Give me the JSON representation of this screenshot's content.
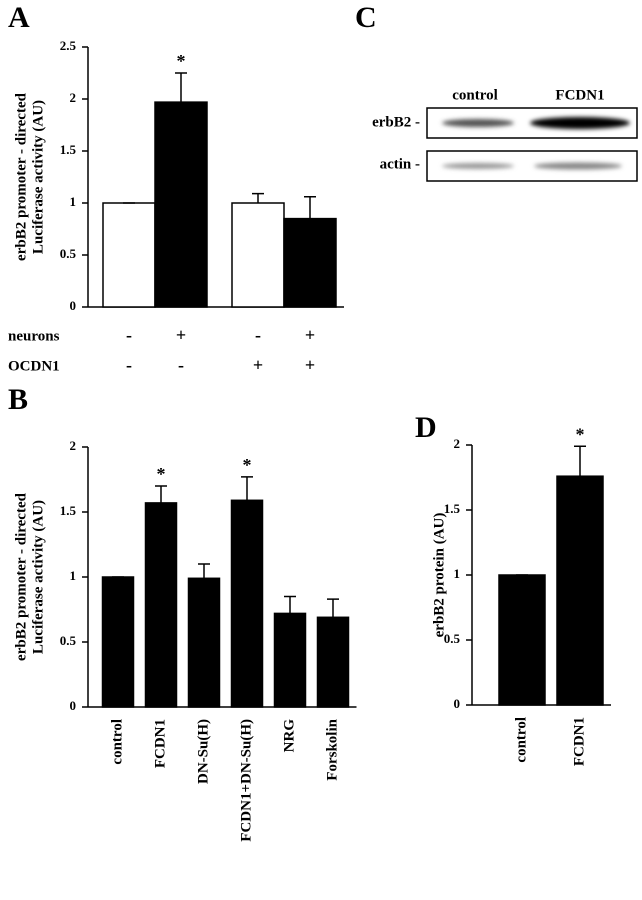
{
  "chart_data": [
    {
      "type": "bar",
      "panel": "A",
      "ylabel": [
        "erbB2 promoter - directed",
        "Luciferase activity (AU)"
      ],
      "categories": [
        null,
        null,
        null,
        null
      ],
      "values": [
        1,
        1.97,
        1,
        0.85
      ],
      "errors": [
        0,
        0.28,
        0.09,
        0.21
      ],
      "colors": [
        "#ffffff",
        "#000000",
        "#ffffff",
        "#000000"
      ],
      "significance": [
        null,
        "*",
        null,
        null
      ],
      "conditions": [
        {
          "name": "neurons",
          "values": [
            "-",
            "+",
            "-",
            "+"
          ]
        },
        {
          "name": "OCDN1",
          "values": [
            "-",
            "-",
            "+",
            "+"
          ]
        }
      ],
      "ylim": [
        0,
        2.5
      ],
      "yticks": [
        0,
        0.5,
        1,
        1.5,
        2,
        2.5
      ]
    },
    {
      "type": "bar",
      "panel": "B",
      "ylabel": [
        "erbB2 promoter - directed",
        "Luciferase activity (AU)"
      ],
      "categories": [
        "control",
        "FCDN1",
        "DN-Su(H)",
        "FCDN1+DN-Su(H)",
        "NRG",
        "Forskolin"
      ],
      "values": [
        1,
        1.57,
        0.99,
        1.59,
        0.72,
        0.69
      ],
      "errors": [
        0,
        0.13,
        0.11,
        0.18,
        0.13,
        0.14
      ],
      "color": "#000000",
      "significance": [
        null,
        "*",
        null,
        "*",
        null,
        null
      ],
      "ylim": [
        0,
        2
      ],
      "yticks": [
        0,
        0.5,
        1,
        1.5,
        2
      ]
    },
    {
      "type": "bar",
      "panel": "D",
      "ylabel": [
        "erbB2 protein (AU)"
      ],
      "categories": [
        "control",
        "FCDN1"
      ],
      "values": [
        1,
        1.76
      ],
      "errors": [
        0,
        0.23
      ],
      "color": "#000000",
      "significance": [
        null,
        "*"
      ],
      "ylim": [
        0,
        2
      ],
      "yticks": [
        0,
        0.5,
        1,
        1.5,
        2
      ]
    }
  ],
  "blot": {
    "panel": "C",
    "lanes": [
      "control",
      "FCDN1"
    ],
    "rows": [
      "erbB2 -",
      "actin -"
    ]
  }
}
